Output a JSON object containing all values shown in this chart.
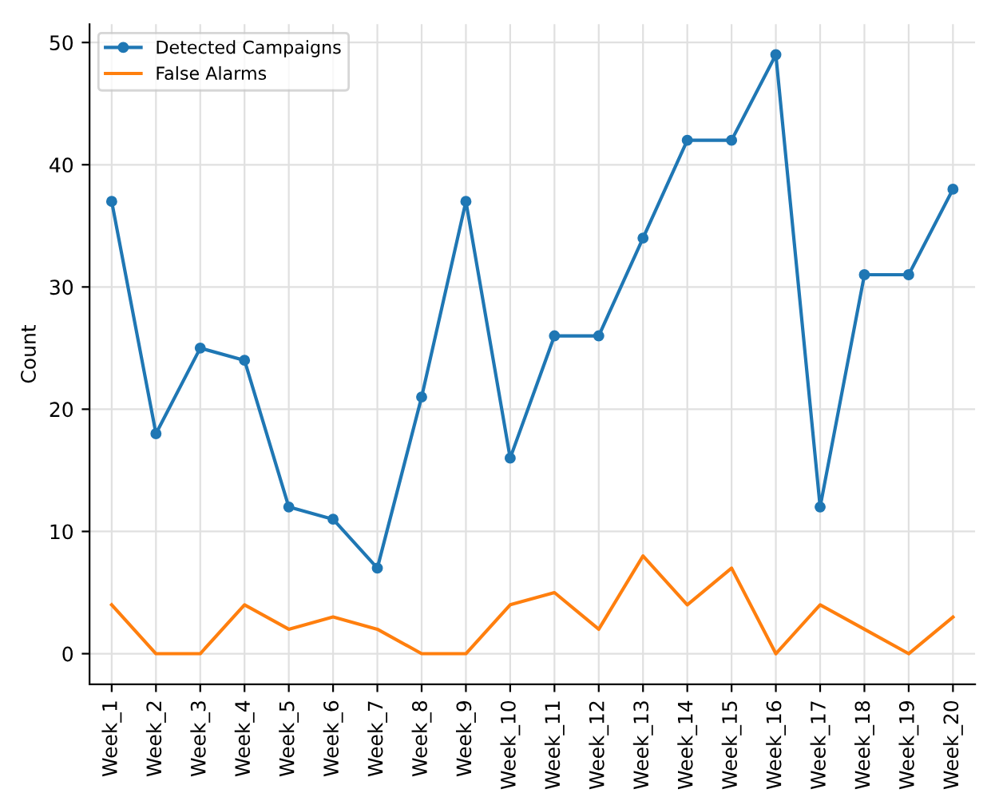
{
  "chart_data": {
    "type": "line",
    "ylabel": "Count",
    "categories": [
      "Week_1",
      "Week_2",
      "Week_3",
      "Week_4",
      "Week_5",
      "Week_6",
      "Week_7",
      "Week_8",
      "Week_9",
      "Week_10",
      "Week_11",
      "Week_12",
      "Week_13",
      "Week_14",
      "Week_15",
      "Week_16",
      "Week_17",
      "Week_18",
      "Week_19",
      "Week_20"
    ],
    "series": [
      {
        "name": "Detected Campaigns",
        "color": "#1f77b4",
        "marker": "circle",
        "values": [
          37,
          18,
          25,
          24,
          12,
          11,
          7,
          21,
          37,
          16,
          26,
          26,
          34,
          42,
          42,
          49,
          12,
          31,
          31,
          38
        ]
      },
      {
        "name": "False Alarms",
        "color": "#ff7f0e",
        "marker": "none",
        "values": [
          4,
          0,
          0,
          4,
          2,
          3,
          2,
          0,
          0,
          4,
          5,
          2,
          8,
          4,
          7,
          0,
          4,
          2,
          0,
          3
        ]
      }
    ],
    "ylim": [
      -2.5,
      51.5
    ],
    "yticks": [
      0,
      10,
      20,
      30,
      40,
      50
    ],
    "grid": true,
    "legend": "top left"
  }
}
